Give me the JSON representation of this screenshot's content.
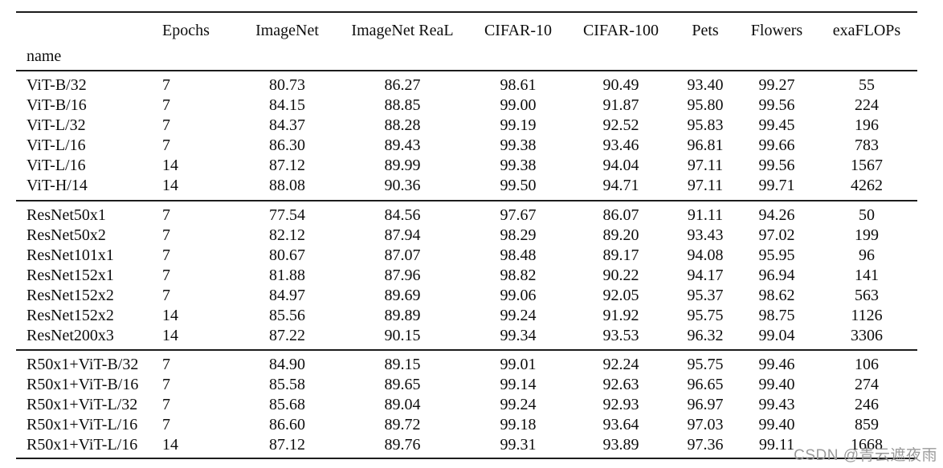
{
  "watermark": "CSDN @青云遮夜雨",
  "table": {
    "name_header": "name",
    "columns": [
      "Epochs",
      "ImageNet",
      "ImageNet ReaL",
      "CIFAR-10",
      "CIFAR-100",
      "Pets",
      "Flowers",
      "exaFLOPs"
    ],
    "groups": [
      {
        "rows": [
          {
            "name": "ViT-B/32",
            "values": [
              "7",
              "80.73",
              "86.27",
              "98.61",
              "90.49",
              "93.40",
              "99.27",
              "55"
            ]
          },
          {
            "name": "ViT-B/16",
            "values": [
              "7",
              "84.15",
              "88.85",
              "99.00",
              "91.87",
              "95.80",
              "99.56",
              "224"
            ]
          },
          {
            "name": "ViT-L/32",
            "values": [
              "7",
              "84.37",
              "88.28",
              "99.19",
              "92.52",
              "95.83",
              "99.45",
              "196"
            ]
          },
          {
            "name": "ViT-L/16",
            "values": [
              "7",
              "86.30",
              "89.43",
              "99.38",
              "93.46",
              "96.81",
              "99.66",
              "783"
            ]
          },
          {
            "name": "ViT-L/16",
            "values": [
              "14",
              "87.12",
              "89.99",
              "99.38",
              "94.04",
              "97.11",
              "99.56",
              "1567"
            ]
          },
          {
            "name": "ViT-H/14",
            "values": [
              "14",
              "88.08",
              "90.36",
              "99.50",
              "94.71",
              "97.11",
              "99.71",
              "4262"
            ]
          }
        ]
      },
      {
        "rows": [
          {
            "name": "ResNet50x1",
            "values": [
              "7",
              "77.54",
              "84.56",
              "97.67",
              "86.07",
              "91.11",
              "94.26",
              "50"
            ]
          },
          {
            "name": "ResNet50x2",
            "values": [
              "7",
              "82.12",
              "87.94",
              "98.29",
              "89.20",
              "93.43",
              "97.02",
              "199"
            ]
          },
          {
            "name": "ResNet101x1",
            "values": [
              "7",
              "80.67",
              "87.07",
              "98.48",
              "89.17",
              "94.08",
              "95.95",
              "96"
            ]
          },
          {
            "name": "ResNet152x1",
            "values": [
              "7",
              "81.88",
              "87.96",
              "98.82",
              "90.22",
              "94.17",
              "96.94",
              "141"
            ]
          },
          {
            "name": "ResNet152x2",
            "values": [
              "7",
              "84.97",
              "89.69",
              "99.06",
              "92.05",
              "95.37",
              "98.62",
              "563"
            ]
          },
          {
            "name": "ResNet152x2",
            "values": [
              "14",
              "85.56",
              "89.89",
              "99.24",
              "91.92",
              "95.75",
              "98.75",
              "1126"
            ]
          },
          {
            "name": "ResNet200x3",
            "values": [
              "14",
              "87.22",
              "90.15",
              "99.34",
              "93.53",
              "96.32",
              "99.04",
              "3306"
            ]
          }
        ]
      },
      {
        "rows": [
          {
            "name": "R50x1+ViT-B/32",
            "values": [
              "7",
              "84.90",
              "89.15",
              "99.01",
              "92.24",
              "95.75",
              "99.46",
              "106"
            ]
          },
          {
            "name": "R50x1+ViT-B/16",
            "values": [
              "7",
              "85.58",
              "89.65",
              "99.14",
              "92.63",
              "96.65",
              "99.40",
              "274"
            ]
          },
          {
            "name": "R50x1+ViT-L/32",
            "values": [
              "7",
              "85.68",
              "89.04",
              "99.24",
              "92.93",
              "96.97",
              "99.43",
              "246"
            ]
          },
          {
            "name": "R50x1+ViT-L/16",
            "values": [
              "7",
              "86.60",
              "89.72",
              "99.18",
              "93.64",
              "97.03",
              "99.40",
              "859"
            ]
          },
          {
            "name": "R50x1+ViT-L/16",
            "values": [
              "14",
              "87.12",
              "89.76",
              "99.31",
              "93.89",
              "97.36",
              "99.11",
              "1668"
            ]
          }
        ]
      }
    ]
  }
}
